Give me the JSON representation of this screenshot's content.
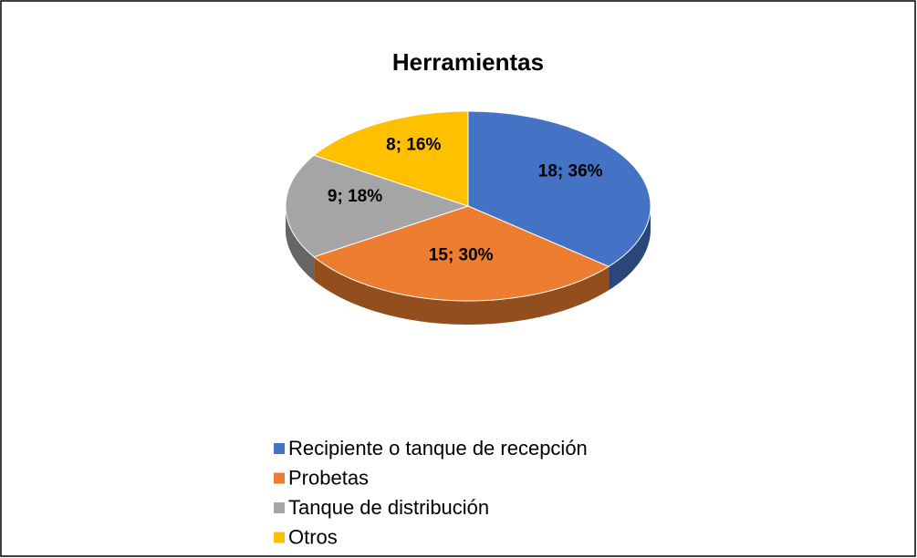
{
  "chart_data": {
    "type": "pie",
    "title": "Herramientas",
    "categories": [
      "Recipiente o tanque de recepción",
      "Probetas",
      "Tanque de distribución",
      "Otros"
    ],
    "values": [
      18,
      15,
      9,
      8
    ],
    "value_labels": [
      "18; 36%",
      "15; 30%",
      "9; 18%",
      "8; 16%"
    ],
    "colors": [
      "#4472c4",
      "#ed7d31",
      "#a5a5a5",
      "#ffc000"
    ],
    "legend": "bottom"
  }
}
